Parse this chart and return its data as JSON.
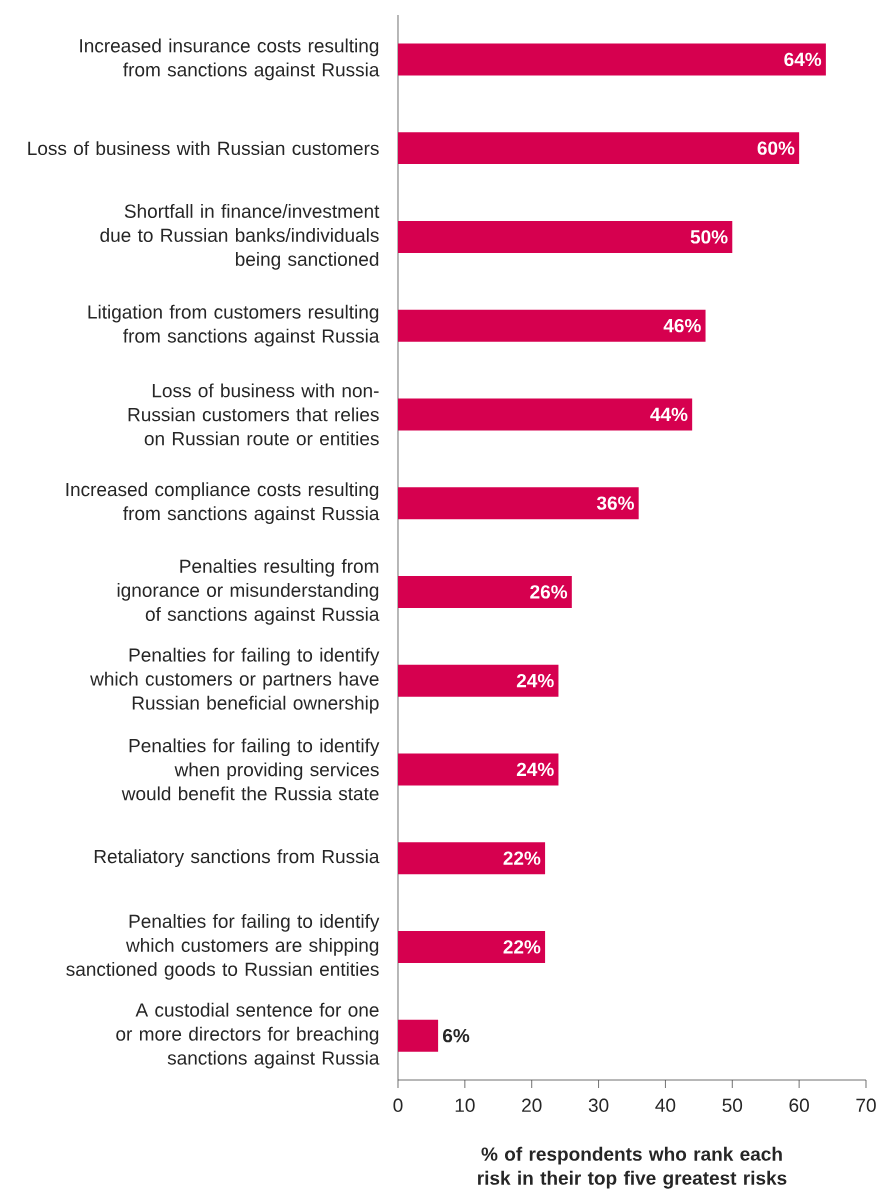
{
  "chart_data": {
    "type": "bar",
    "orientation": "horizontal",
    "color": "#d6004f",
    "categories": [
      "Increased insurance costs resulting from sanctions against Russia",
      "Loss of business with Russian customers",
      "Shortfall in finance/investment due to Russian banks/individuals being sanctioned",
      "Litigation from customers resulting from sanctions against Russia",
      "Loss of business with non-Russian customers that relies on Russian route or entities",
      "Increased compliance costs resulting from sanctions against Russia",
      "Penalties resulting from ignorance or misunderstanding of sanctions against Russia",
      "Penalties for failing to identify which customers or partners have Russian beneficial ownership",
      "Penalties for failing to identify when providing services would benefit the Russia state",
      "Retaliatory sanctions from Russia",
      "Penalties for failing to identify which customers are shipping sanctioned goods to Russian entities",
      "A custodial sentence for one or more directors for breaching sanctions against Russia"
    ],
    "values": [
      64,
      60,
      50,
      46,
      44,
      36,
      26,
      24,
      24,
      22,
      22,
      6
    ],
    "value_labels": [
      "64%",
      "60%",
      "50%",
      "46%",
      "44%",
      "36%",
      "26%",
      "24%",
      "24%",
      "22%",
      "22%",
      "6%"
    ],
    "xlim": [
      0,
      70
    ],
    "xticks": [
      0,
      10,
      20,
      30,
      40,
      50,
      60,
      70
    ],
    "xlabel": "% of respondents who rank each risk in their top five greatest risks"
  }
}
